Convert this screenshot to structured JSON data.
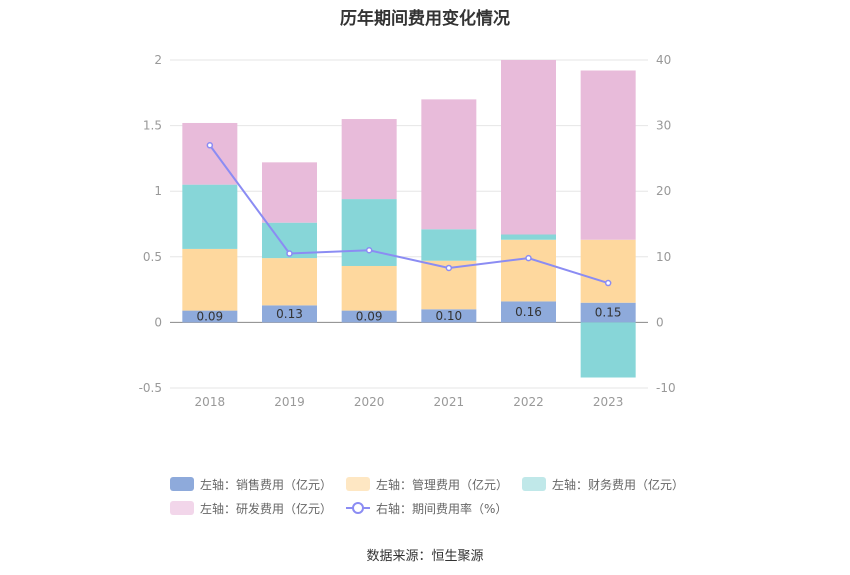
{
  "chart_data": {
    "type": "bar",
    "title": "历年期间费用变化情况",
    "categories": [
      "2018",
      "2019",
      "2020",
      "2021",
      "2022",
      "2023"
    ],
    "stacked": true,
    "series": [
      {
        "name": "左轴：销售费用（亿元）",
        "axis": "left",
        "color": "#8eaadb",
        "values": [
          0.09,
          0.13,
          0.09,
          0.1,
          0.16,
          0.15
        ],
        "labels": [
          "0.09",
          "0.13",
          "0.09",
          "0.10",
          "0.16",
          "0.15"
        ]
      },
      {
        "name": "左轴：管理费用（亿元）",
        "axis": "left",
        "color": "#fed89e",
        "values": [
          0.47,
          0.36,
          0.34,
          0.37,
          0.47,
          0.48
        ]
      },
      {
        "name": "左轴：财务费用（亿元）",
        "axis": "left",
        "color": "#87d6d8",
        "values": [
          0.49,
          0.27,
          0.51,
          0.24,
          0.04,
          -0.42
        ]
      },
      {
        "name": "左轴：研发费用（亿元）",
        "axis": "left",
        "color": "#e8bbda",
        "values": [
          0.47,
          0.46,
          0.61,
          0.99,
          1.33,
          1.29
        ]
      }
    ],
    "line_series": {
      "name": "右轴：期间费用率（%）",
      "axis": "right",
      "color": "#8b8cf3",
      "values": [
        27.0,
        10.5,
        11.0,
        8.3,
        9.8,
        6.0
      ]
    },
    "left_axis": {
      "ylim": [
        -0.5,
        2
      ],
      "ticks": [
        "2",
        "1.5",
        "1",
        "0.5",
        "0",
        "-0.5"
      ],
      "tick_values": [
        2,
        1.5,
        1,
        0.5,
        0,
        -0.5
      ]
    },
    "right_axis": {
      "ylim": [
        -10,
        40
      ],
      "ticks": [
        "40",
        "30",
        "20",
        "10",
        "0",
        "-10"
      ],
      "tick_values": [
        40,
        30,
        20,
        10,
        0,
        -10
      ]
    },
    "legend_position": "bottom"
  },
  "legend": {
    "items": [
      {
        "label": "左轴：销售费用（亿元）",
        "color": "#8eaadb"
      },
      {
        "label": "左轴：管理费用（亿元）",
        "color": "#fed89e"
      },
      {
        "label": "左轴：财务费用（亿元）",
        "color": "#c0e8e9"
      },
      {
        "label": "左轴：研发费用（亿元）",
        "color": "#f2d6ea"
      },
      {
        "label": "右轴：期间费用率（%）",
        "color": "#8b8cf3"
      }
    ]
  },
  "source": "数据来源：恒生聚源"
}
